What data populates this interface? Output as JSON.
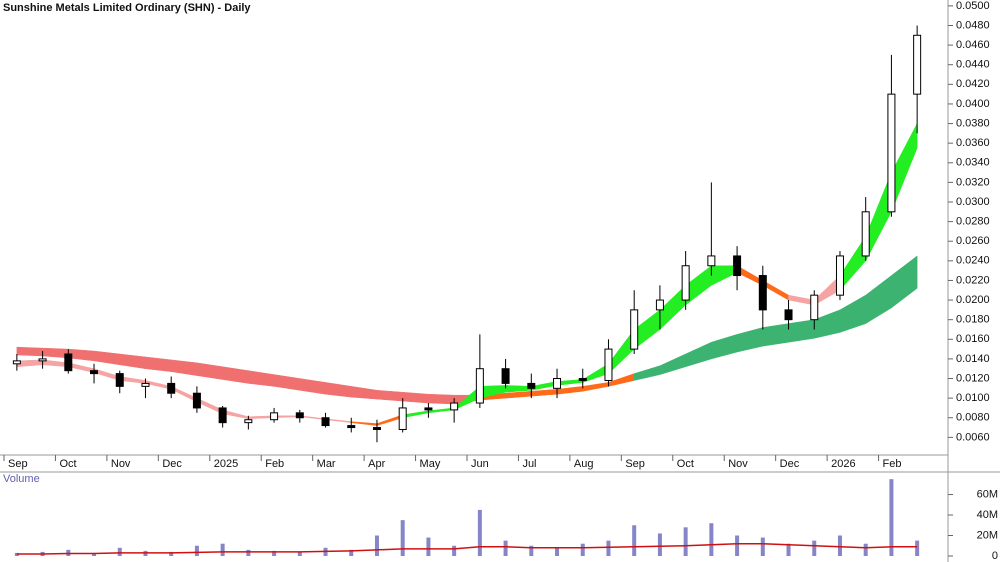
{
  "chart_data": [
    {
      "type": "candlestick",
      "title": "Sunshine Metals Limited Ordinary (SHN) - Daily",
      "categories": [
        "Sep",
        null,
        "Oct",
        null,
        "Nov",
        null,
        "Dec",
        null,
        "2025",
        null,
        "Feb",
        null,
        "Mar",
        null,
        "Apr",
        null,
        "May",
        null,
        "Jun",
        null,
        "Jul",
        null,
        "Aug",
        null,
        "Sep",
        null,
        "Oct",
        null,
        "Nov",
        null,
        "Dec",
        null,
        "2026",
        null,
        "Feb",
        null
      ],
      "open": [
        0.0135,
        0.0138,
        0.0145,
        0.0128,
        0.0125,
        0.0112,
        0.0115,
        0.0105,
        0.009,
        0.0075,
        0.0078,
        0.0085,
        0.008,
        0.0072,
        0.007,
        0.0068,
        0.009,
        0.0088,
        0.0095,
        0.013,
        0.0115,
        0.011,
        0.012,
        0.0118,
        0.015,
        0.019,
        0.02,
        0.0235,
        0.0245,
        0.0225,
        0.019,
        0.018,
        0.0205,
        0.0245,
        0.029,
        0.041
      ],
      "high": [
        0.0145,
        0.0148,
        0.015,
        0.0135,
        0.0128,
        0.012,
        0.0122,
        0.0112,
        0.0092,
        0.0082,
        0.009,
        0.0088,
        0.0085,
        0.008,
        0.0078,
        0.01,
        0.0095,
        0.01,
        0.0165,
        0.014,
        0.0125,
        0.013,
        0.013,
        0.016,
        0.021,
        0.0215,
        0.025,
        0.032,
        0.0255,
        0.0235,
        0.02,
        0.021,
        0.025,
        0.0305,
        0.045,
        0.048
      ],
      "low": [
        0.0128,
        0.013,
        0.0125,
        0.0115,
        0.0105,
        0.01,
        0.01,
        0.0085,
        0.007,
        0.0068,
        0.0075,
        0.0075,
        0.007,
        0.0065,
        0.0055,
        0.0065,
        0.008,
        0.0075,
        0.009,
        0.011,
        0.01,
        0.01,
        0.011,
        0.0112,
        0.0145,
        0.017,
        0.019,
        0.0225,
        0.021,
        0.017,
        0.017,
        0.017,
        0.02,
        0.024,
        0.0285,
        0.037
      ],
      "close": [
        0.0138,
        0.014,
        0.0128,
        0.0125,
        0.0112,
        0.0115,
        0.0105,
        0.009,
        0.0075,
        0.0078,
        0.0085,
        0.008,
        0.0072,
        0.007,
        0.0068,
        0.009,
        0.0088,
        0.0095,
        0.013,
        0.0115,
        0.011,
        0.012,
        0.0118,
        0.015,
        0.019,
        0.02,
        0.0235,
        0.0245,
        0.0225,
        0.019,
        0.018,
        0.0205,
        0.0245,
        0.029,
        0.041,
        0.047
      ],
      "short_ribbon": {
        "upper": [
          0.0138,
          0.0139,
          0.0136,
          0.013,
          0.0122,
          0.0118,
          0.0112,
          0.01,
          0.0088,
          0.0081,
          0.0082,
          0.0082,
          0.0079,
          0.0076,
          0.0074,
          0.0083,
          0.0087,
          0.009,
          0.0112,
          0.0113,
          0.0112,
          0.0117,
          0.0119,
          0.0135,
          0.017,
          0.019,
          0.0215,
          0.0235,
          0.0235,
          0.022,
          0.0205,
          0.02,
          0.0225,
          0.0265,
          0.033,
          0.038
        ],
        "lower": [
          0.0132,
          0.0134,
          0.0132,
          0.0126,
          0.0118,
          0.0115,
          0.0109,
          0.0096,
          0.0084,
          0.0079,
          0.008,
          0.0081,
          0.0078,
          0.0075,
          0.0072,
          0.008,
          0.0085,
          0.0088,
          0.01,
          0.0106,
          0.0108,
          0.0113,
          0.0116,
          0.0125,
          0.015,
          0.017,
          0.0195,
          0.0215,
          0.0228,
          0.0215,
          0.02,
          0.0195,
          0.021,
          0.024,
          0.029,
          0.0355
        ],
        "colors": [
          "#f5a3a3",
          "#f5a3a3",
          "#f5a3a3",
          "#f5a3a3",
          "#f5a3a3",
          "#f5a3a3",
          "#f5a3a3",
          "#f5a3a3",
          "#f5a3a3",
          "#f5a3a3",
          "#f5a3a3",
          "#f5a3a3",
          "#f5a3a3",
          "#ff6a1a",
          "#ff6a1a",
          "#22ee22",
          "#22ee22",
          "#22ee22",
          "#22ee22",
          "#22ee22",
          "#22ee22",
          "#22ee22",
          "#22ee22",
          "#22ee22",
          "#22ee22",
          "#22ee22",
          "#22ee22",
          "#22ee22",
          "#ff6a1a",
          "#ff6a1a",
          "#f5a3a3",
          "#f5a3a3",
          "#22ee22",
          "#22ee22",
          "#22ee22",
          "#22ee22"
        ]
      },
      "long_ribbon": {
        "upper": [
          0.0152,
          0.0151,
          0.015,
          0.0148,
          0.0145,
          0.0142,
          0.0139,
          0.0136,
          0.0132,
          0.0128,
          0.0124,
          0.012,
          0.0116,
          0.0112,
          0.0108,
          0.0106,
          0.0104,
          0.0103,
          0.0103,
          0.0105,
          0.0107,
          0.0109,
          0.0112,
          0.0116,
          0.0125,
          0.0133,
          0.0145,
          0.0157,
          0.0165,
          0.0172,
          0.0176,
          0.018,
          0.019,
          0.0205,
          0.0225,
          0.0245
        ],
        "lower": [
          0.0144,
          0.0143,
          0.0141,
          0.0138,
          0.0134,
          0.013,
          0.0127,
          0.0123,
          0.0119,
          0.0115,
          0.0112,
          0.0108,
          0.0104,
          0.0101,
          0.0099,
          0.0097,
          0.0095,
          0.0094,
          0.0098,
          0.01,
          0.0102,
          0.0104,
          0.0107,
          0.0112,
          0.0118,
          0.0124,
          0.0132,
          0.014,
          0.0147,
          0.0153,
          0.0157,
          0.0161,
          0.0167,
          0.0176,
          0.0192,
          0.0212
        ],
        "colors": [
          "#f07070",
          "#f07070",
          "#f07070",
          "#f07070",
          "#f07070",
          "#f07070",
          "#f07070",
          "#f07070",
          "#f07070",
          "#f07070",
          "#f07070",
          "#f07070",
          "#f07070",
          "#f07070",
          "#f07070",
          "#f07070",
          "#f07070",
          "#f07070",
          "#ff6a1a",
          "#ff6a1a",
          "#ff6a1a",
          "#ff6a1a",
          "#ff6a1a",
          "#ff6a1a",
          "#3cb371",
          "#3cb371",
          "#3cb371",
          "#3cb371",
          "#3cb371",
          "#3cb371",
          "#3cb371",
          "#3cb371",
          "#3cb371",
          "#3cb371",
          "#3cb371",
          "#3cb371"
        ]
      },
      "up_color": "#ffffff",
      "down_color": "#000000",
      "ylim": [
        0.0042,
        0.0506
      ],
      "yticks": [
        {
          "value": 0.006,
          "label": "0.0060"
        },
        {
          "value": 0.008,
          "label": "0.0080"
        },
        {
          "value": 0.01,
          "label": "0.0100"
        },
        {
          "value": 0.012,
          "label": "0.0120"
        },
        {
          "value": 0.014,
          "label": "0.0140"
        },
        {
          "value": 0.016,
          "label": "0.0160"
        },
        {
          "value": 0.018,
          "label": "0.0180"
        },
        {
          "value": 0.02,
          "label": "0.0200"
        },
        {
          "value": 0.022,
          "label": "0.0220"
        },
        {
          "value": 0.024,
          "label": "0.0240"
        },
        {
          "value": 0.026,
          "label": "0.0260"
        },
        {
          "value": 0.028,
          "label": "0.0280"
        },
        {
          "value": 0.03,
          "label": "0.0300"
        },
        {
          "value": 0.032,
          "label": "0.0320"
        },
        {
          "value": 0.034,
          "label": "0.0340"
        },
        {
          "value": 0.036,
          "label": "0.0360"
        },
        {
          "value": 0.038,
          "label": "0.0380"
        },
        {
          "value": 0.04,
          "label": "0.0400"
        },
        {
          "value": 0.042,
          "label": "0.0420"
        },
        {
          "value": 0.044,
          "label": "0.0440"
        },
        {
          "value": 0.046,
          "label": "0.0460"
        },
        {
          "value": 0.048,
          "label": "0.0480"
        },
        {
          "value": 0.05,
          "label": "0.0500"
        }
      ]
    },
    {
      "type": "bar",
      "title": "Volume",
      "values": [
        3000000,
        4000000,
        6000000,
        3000000,
        8000000,
        5000000,
        4000000,
        10000000,
        12000000,
        6000000,
        5000000,
        4000000,
        8000000,
        6000000,
        20000000,
        35000000,
        18000000,
        10000000,
        45000000,
        15000000,
        10000000,
        8000000,
        12000000,
        15000000,
        30000000,
        22000000,
        28000000,
        32000000,
        20000000,
        18000000,
        12000000,
        15000000,
        20000000,
        12000000,
        75000000,
        15000000
      ],
      "average": [
        2000000,
        2000000,
        2500000,
        2500000,
        3000000,
        3000000,
        3000000,
        3500000,
        4000000,
        4000000,
        4000000,
        4000000,
        4500000,
        5000000,
        6000000,
        7000000,
        7000000,
        7000000,
        9000000,
        9000000,
        8000000,
        8000000,
        8000000,
        8500000,
        9000000,
        9500000,
        10000000,
        11000000,
        12000000,
        12000000,
        11000000,
        10000000,
        9000000,
        8000000,
        9000000,
        9000000
      ],
      "color": "#8585c8",
      "average_color": "#d01010",
      "ylim": [
        0,
        82000000
      ],
      "yticks": [
        0,
        {
          "value": 20000000,
          "label": "20M"
        },
        {
          "value": 40000000,
          "label": "40M"
        },
        {
          "value": 60000000,
          "label": "60M"
        }
      ]
    }
  ]
}
